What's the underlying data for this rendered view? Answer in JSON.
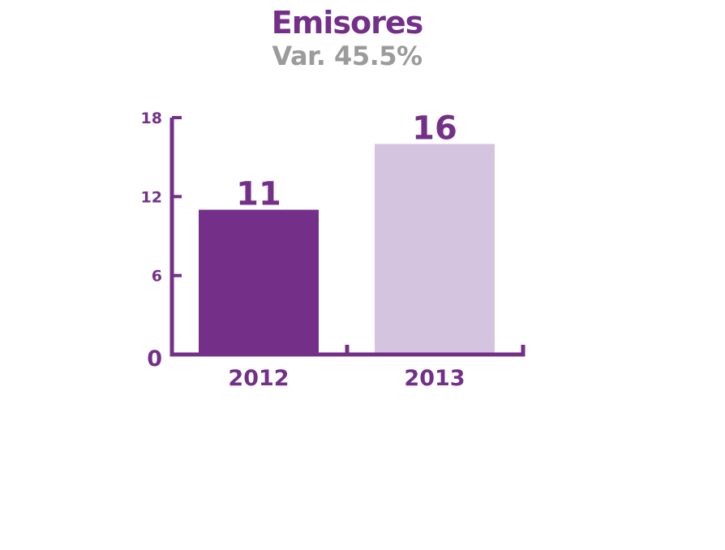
{
  "colors": {
    "accent": "#743089",
    "light": "#d5c4e0",
    "subtitle": "#9b9b9b",
    "background": "#ffffff"
  },
  "chart_data": {
    "type": "bar",
    "title": "Emisores",
    "subtitle": "Var. 45.5%",
    "categories": [
      "2012",
      "2013"
    ],
    "values": [
      11,
      16
    ],
    "data_labels": [
      "11",
      "16"
    ],
    "bar_colors": [
      "#743089",
      "#d5c4e0"
    ],
    "ylim": [
      0,
      18
    ],
    "yticks": [
      0,
      6,
      12,
      18
    ],
    "ytick_labels": [
      "0",
      "6",
      "12",
      "18"
    ],
    "xlabel": "",
    "ylabel": "",
    "grid": false,
    "legend": "none"
  }
}
